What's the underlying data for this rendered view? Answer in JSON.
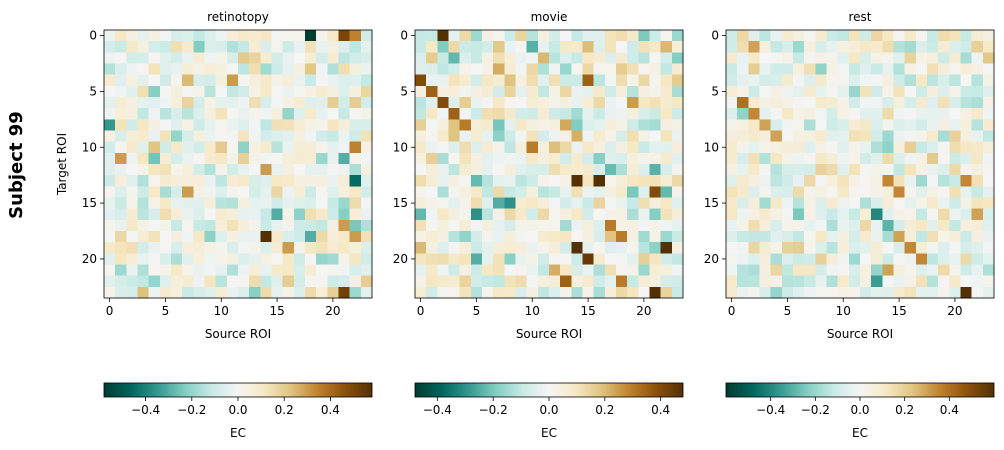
{
  "figure": {
    "suptitle": "Subject 99"
  },
  "chart_data": [
    {
      "type": "heatmap",
      "title": "retinotopy",
      "xlabel": "Source ROI",
      "ylabel": "Target ROI",
      "n_rois": 24,
      "x_ticks": [
        0,
        5,
        10,
        15,
        20
      ],
      "y_ticks": [
        0,
        5,
        10,
        15,
        20
      ],
      "colormap": "BrBG_r",
      "clim": [
        -0.58,
        0.58
      ],
      "colorbar": {
        "label": "EC",
        "ticks": [
          -0.4,
          -0.2,
          0.0,
          0.2,
          0.4
        ]
      },
      "seed": 11,
      "highlights": [
        [
          0,
          18,
          -0.58
        ],
        [
          0,
          21,
          0.5
        ],
        [
          8,
          0,
          -0.35
        ],
        [
          18,
          14,
          0.58
        ],
        [
          23,
          21,
          0.52
        ],
        [
          18,
          18,
          -0.3
        ],
        [
          11,
          21,
          -0.3
        ],
        [
          13,
          22,
          -0.45
        ],
        [
          16,
          15,
          -0.3
        ],
        [
          10,
          22,
          0.35
        ],
        [
          12,
          14,
          0.3
        ],
        [
          4,
          11,
          0.3
        ],
        [
          11,
          1,
          0.3
        ],
        [
          17,
          21,
          0.3
        ],
        [
          18,
          22,
          0.3
        ],
        [
          19,
          16,
          0.3
        ],
        [
          14,
          7,
          0.3
        ],
        [
          0,
          22,
          0.35
        ]
      ]
    },
    {
      "type": "heatmap",
      "title": "movie",
      "xlabel": "Source ROI",
      "ylabel": "",
      "n_rois": 24,
      "x_ticks": [
        0,
        5,
        10,
        15,
        20
      ],
      "y_ticks": [
        0,
        5,
        10,
        15,
        20
      ],
      "colormap": "BrBG_r",
      "clim": [
        -0.48,
        0.48
      ],
      "colorbar": {
        "label": "EC",
        "ticks": [
          -0.4,
          -0.2,
          0.0,
          0.2,
          0.4
        ]
      },
      "seed": 23,
      "highlights": [
        [
          0,
          2,
          0.48
        ],
        [
          4,
          0,
          0.4
        ],
        [
          5,
          1,
          0.35
        ],
        [
          6,
          2,
          0.4
        ],
        [
          7,
          3,
          0.35
        ],
        [
          8,
          4,
          0.3
        ],
        [
          13,
          14,
          0.48
        ],
        [
          13,
          16,
          0.48
        ],
        [
          17,
          17,
          0.3
        ],
        [
          18,
          18,
          0.3
        ],
        [
          19,
          14,
          0.48
        ],
        [
          20,
          15,
          0.45
        ],
        [
          22,
          18,
          0.3
        ],
        [
          23,
          21,
          0.48
        ],
        [
          19,
          22,
          0.5
        ],
        [
          14,
          21,
          0.4
        ],
        [
          15,
          8,
          -0.3
        ],
        [
          16,
          5,
          -0.3
        ],
        [
          4,
          15,
          0.35
        ],
        [
          10,
          10,
          0.3
        ],
        [
          22,
          13,
          0.35
        ]
      ]
    },
    {
      "type": "heatmap",
      "title": "rest",
      "xlabel": "Source ROI",
      "ylabel": "",
      "n_rois": 24,
      "x_ticks": [
        0,
        5,
        10,
        15,
        20
      ],
      "y_ticks": [
        0,
        5,
        10,
        15,
        20
      ],
      "colormap": "BrBG_r",
      "clim": [
        -0.6,
        0.6
      ],
      "colorbar": {
        "label": "EC",
        "ticks": [
          -0.4,
          -0.2,
          0.0,
          0.2,
          0.4
        ]
      },
      "seed": 37,
      "highlights": [
        [
          6,
          1,
          0.4
        ],
        [
          7,
          2,
          0.35
        ],
        [
          8,
          3,
          0.3
        ],
        [
          9,
          4,
          0.3
        ],
        [
          13,
          14,
          0.35
        ],
        [
          14,
          15,
          0.35
        ],
        [
          16,
          13,
          -0.4
        ],
        [
          17,
          14,
          -0.3
        ],
        [
          18,
          15,
          0.3
        ],
        [
          19,
          16,
          0.35
        ],
        [
          20,
          17,
          0.35
        ],
        [
          23,
          21,
          0.6
        ],
        [
          13,
          21,
          0.35
        ],
        [
          16,
          22,
          0.3
        ],
        [
          22,
          13,
          -0.35
        ],
        [
          21,
          14,
          0.3
        ],
        [
          1,
          2,
          0.3
        ]
      ]
    }
  ]
}
